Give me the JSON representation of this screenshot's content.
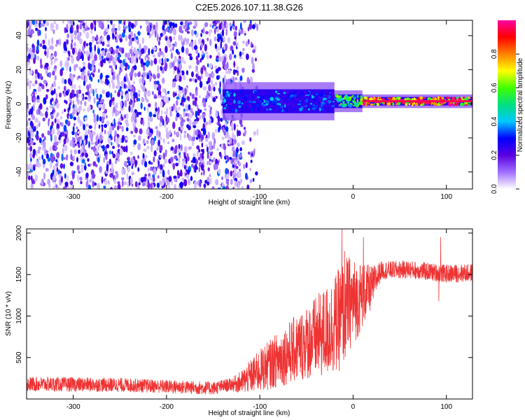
{
  "title": "C2E5.2026.107.11.38.G26",
  "chart_data": [
    {
      "type": "heatmap",
      "name": "spectrogram",
      "xlabel": "Height of straight line (km)",
      "ylabel": "Frequency (Hz)",
      "xlim": [
        -350,
        128
      ],
      "ylim": [
        -50,
        49
      ],
      "xticks": [
        -300,
        -200,
        -100,
        0,
        100
      ],
      "xtick_labels": [
        "-300",
        "-200",
        "-100",
        "0",
        "100"
      ],
      "yticks": [
        -40,
        -20,
        0,
        20,
        40
      ],
      "ytick_labels": [
        "-40",
        "-20",
        "0",
        "20",
        "40"
      ],
      "noise_region_km": [
        -350,
        -120
      ],
      "signal_band": {
        "center_hz": 1.5,
        "segments": [
          {
            "from_km": -140,
            "to_km": -20,
            "halfwidth_hz": 7,
            "level": 0.35
          },
          {
            "from_km": -20,
            "to_km": 10,
            "halfwidth_hz": 4,
            "level": 0.55
          },
          {
            "from_km": 10,
            "to_km": 128,
            "halfwidth_hz": 2.5,
            "level": 0.9
          }
        ]
      },
      "colorbar": {
        "label": "Normalized spectral amplitude",
        "range": [
          0,
          1
        ],
        "ticks": [
          0.0,
          0.2,
          0.4,
          0.6,
          0.8
        ],
        "tick_labels": [
          "0.0",
          "0.2",
          "0.4",
          "0.6",
          "0.8"
        ],
        "colors": [
          "#ffffff",
          "#a070ff",
          "#5a00e0",
          "#0000ff",
          "#00c8ff",
          "#00e080",
          "#40ff00",
          "#ffff00",
          "#ff8000",
          "#ff0000",
          "#ff00a0"
        ]
      }
    },
    {
      "type": "line",
      "name": "snr",
      "xlabel": "Height of straight line (km)",
      "ylabel": "SNR (10 * v/v)",
      "xlim": [
        -350,
        128
      ],
      "ylim": [
        0,
        2050
      ],
      "xticks": [
        -300,
        -200,
        -100,
        0,
        100
      ],
      "xtick_labels": [
        "-300",
        "-200",
        "-100",
        "0",
        "100"
      ],
      "yticks": [
        500,
        1000,
        1500,
        2000
      ],
      "ytick_labels": [
        "500",
        "1000",
        "1500",
        "2000"
      ],
      "color": "#ee3333",
      "trend": [
        {
          "x": -350,
          "y": 180
        },
        {
          "x": -250,
          "y": 170
        },
        {
          "x": -150,
          "y": 130
        },
        {
          "x": -120,
          "y": 200
        },
        {
          "x": -100,
          "y": 340
        },
        {
          "x": -80,
          "y": 480
        },
        {
          "x": -50,
          "y": 680
        },
        {
          "x": -30,
          "y": 800
        },
        {
          "x": -15,
          "y": 950
        },
        {
          "x": -5,
          "y": 1150
        },
        {
          "x": 5,
          "y": 1200
        },
        {
          "x": 20,
          "y": 1350
        },
        {
          "x": 30,
          "y": 1550
        },
        {
          "x": 60,
          "y": 1560
        },
        {
          "x": 100,
          "y": 1510
        },
        {
          "x": 128,
          "y": 1520
        }
      ],
      "spread": [
        {
          "x": -350,
          "y": 90
        },
        {
          "x": -130,
          "y": 80
        },
        {
          "x": -100,
          "y": 260
        },
        {
          "x": -50,
          "y": 450
        },
        {
          "x": -10,
          "y": 650
        },
        {
          "x": 10,
          "y": 400
        },
        {
          "x": 30,
          "y": 110
        },
        {
          "x": 128,
          "y": 110
        }
      ],
      "spikes": [
        {
          "x": -12,
          "y": 2050
        },
        {
          "x": -9,
          "y": 1780
        },
        {
          "x": 11,
          "y": 1950
        },
        {
          "x": 94,
          "y": 1950
        },
        {
          "x": 92,
          "y": 1180
        }
      ]
    }
  ]
}
